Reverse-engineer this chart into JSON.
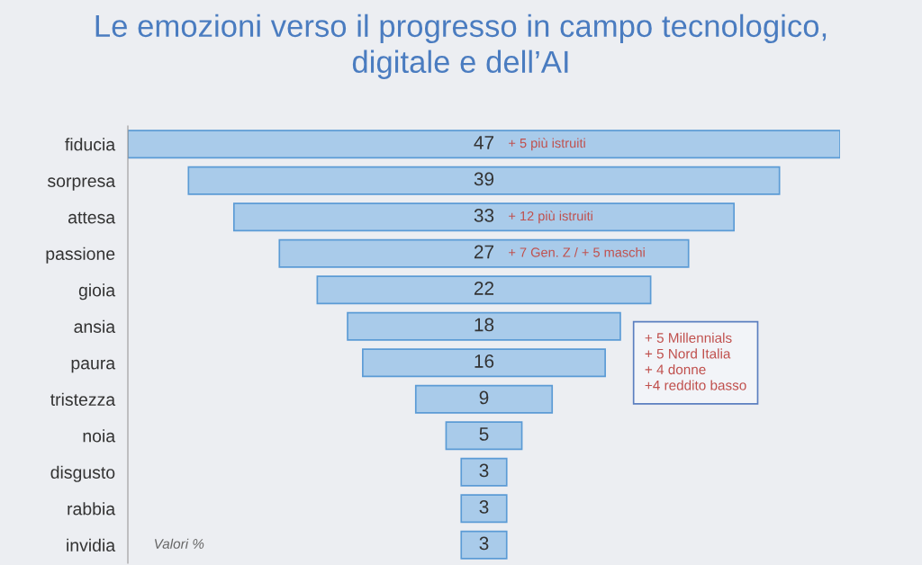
{
  "chart_data": {
    "type": "other",
    "title": "Le emozioni verso il progresso in campo tecnologico,\ndigitale e dell’AI",
    "categories": [
      "fiducia",
      "sorpresa",
      "attesa",
      "passione",
      "gioia",
      "ansia",
      "paura",
      "tristezza",
      "noia",
      "disgusto",
      "rabbia",
      "invidia"
    ],
    "values": [
      47,
      39,
      33,
      27,
      22,
      18,
      16,
      9,
      5,
      3,
      3,
      3
    ],
    "color": "#a9cbea",
    "data_labels": true,
    "annotations": [
      "+ 5 più istruiti",
      "+ 12 più istruiti",
      "+ 7 Gen. Z / + 5 maschi",
      "+ 5 Millennials\n+ 5 Nord Italia\n+ 4 donne\n+4 reddito basso",
      "Valori %"
    ]
  }
}
